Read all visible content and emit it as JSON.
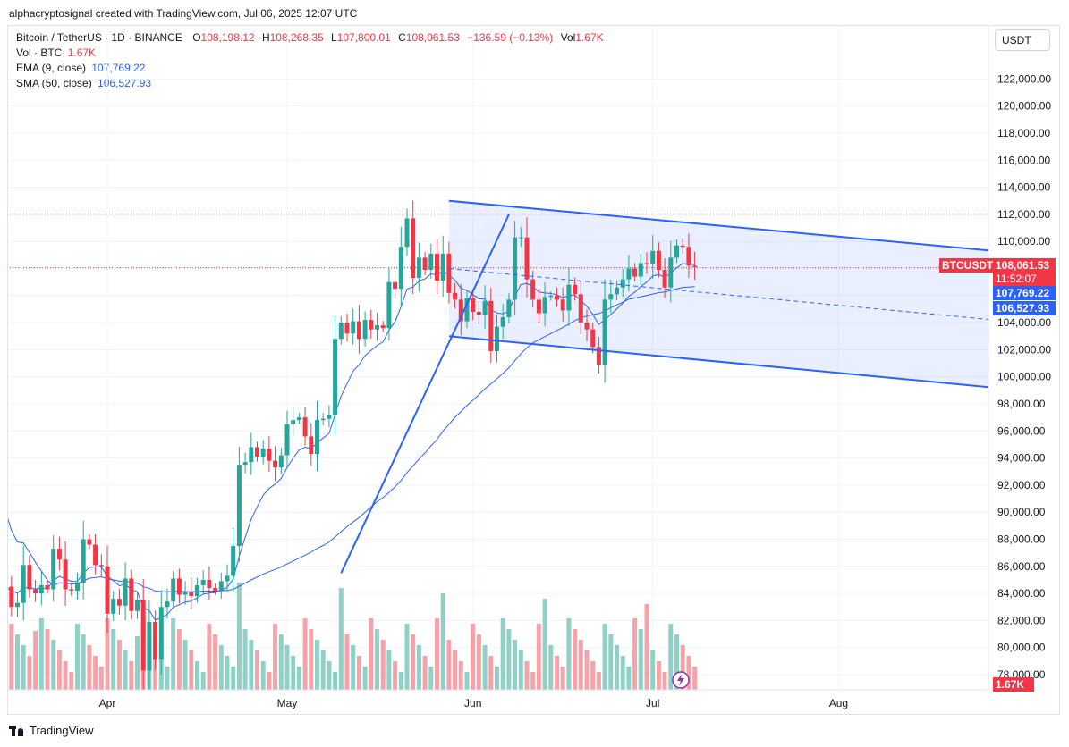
{
  "header": {
    "attribution": "alphacryptosignal created with TradingView.com, Jul 06, 2025 12:07 UTC"
  },
  "legend": {
    "symbol": "Bitcoin / TetherUS · 1D · BINANCE",
    "open_key": "O",
    "open": "108,198.12",
    "high_key": "H",
    "high": "108,268.35",
    "low_key": "L",
    "low": "107,800.01",
    "close_key": "C",
    "close": "108,061.53",
    "change": "−136.59 (−0.13%)",
    "vol_key": "Vol",
    "vol": "1.67K",
    "vol_btc_label": "Vol · BTC",
    "vol_btc": "1.67K",
    "ema_label": "EMA (9, close)",
    "ema": "107,769.22",
    "sma_label": "SMA (50, close)",
    "sma": "106,527.93"
  },
  "currency_button": "USDT",
  "price_tags": {
    "symbol": "BTCUSDT",
    "last_price": "108,061.53",
    "countdown": "11:52:07",
    "ema": "107,769.22",
    "sma": "106,527.93",
    "volume": "1.67K"
  },
  "footer": {
    "brand": "TradingView"
  },
  "colors": {
    "up": "#26a69a",
    "down": "#f23645",
    "channel": "#2962ff",
    "vol_up": "#8fd1c6",
    "vol_down": "#f5a3a8"
  },
  "chart_data": {
    "type": "candlestick",
    "title": "Bitcoin / TetherUS · 1D · BINANCE",
    "y_tick_labels": [
      "78,000.00",
      "80,000.00",
      "82,000.00",
      "84,000.00",
      "86,000.00",
      "88,000.00",
      "90,000.00",
      "92,000.00",
      "94,000.00",
      "96,000.00",
      "98,000.00",
      "100,000.00",
      "102,000.00",
      "104,000.00",
      "106,000.00",
      "108,000.00",
      "110,000.00",
      "112,000.00",
      "114,000.00",
      "116,000.00",
      "118,000.00",
      "120,000.00",
      "122,000.00"
    ],
    "ylim": [
      77000,
      125000
    ],
    "x_tick_labels": [
      {
        "label": "Apr",
        "day": 0
      },
      {
        "label": "May",
        "day": 30
      },
      {
        "label": "Jun",
        "day": 61
      },
      {
        "label": "Jul",
        "day": 91
      },
      {
        "label": "Aug",
        "day": 122
      }
    ],
    "first_day": -17,
    "last_day": 126,
    "closes": [
      84500,
      83000,
      83300,
      86100,
      84300,
      84000,
      84600,
      84300,
      87300,
      86500,
      84300,
      84200,
      84800,
      88000,
      87600,
      86100,
      86000,
      82500,
      83600,
      83100,
      85100,
      82700,
      83500,
      78300,
      81900,
      79100,
      83000,
      83400,
      85100,
      83900,
      84100,
      83800,
      84600,
      85000,
      84400,
      84200,
      84900,
      85300,
      87500,
      93500,
      93700,
      94800,
      94100,
      94700,
      93800,
      93300,
      94200,
      96500,
      96800,
      97000,
      95600,
      94300,
      96800,
      96900,
      97200,
      102800,
      104000,
      103200,
      104100,
      102800,
      104200,
      103500,
      103800,
      103600,
      107000,
      106500,
      109600,
      111700,
      107300,
      108800,
      107900,
      109100,
      107100,
      109100,
      106200,
      105700,
      104100,
      105800,
      104800,
      104600,
      105600,
      101900,
      103700,
      104400,
      105700,
      110300,
      110300,
      107200,
      105700,
      104700,
      105900,
      106000,
      105700,
      104900,
      106800,
      106100,
      104000,
      103500,
      102200,
      100900,
      105700,
      106100,
      106600,
      107200,
      108000,
      107400,
      108400,
      108300,
      109300,
      107900,
      106600,
      108800,
      109700,
      109600,
      108200,
      108100
    ],
    "ema_9": {
      "last": 107769.22
    },
    "sma_50": {
      "last": 106527.93
    },
    "channel": {
      "upper": {
        "from": {
          "day": 57,
          "price": 113000
        },
        "to": {
          "day": 148,
          "price": 109300
        }
      },
      "lower": {
        "from": {
          "day": 57,
          "price": 103000
        },
        "to": {
          "day": 148,
          "price": 99200
        }
      },
      "mid": {
        "from": {
          "day": 57,
          "price": 108000
        },
        "to": {
          "day": 148,
          "price": 104200
        }
      }
    },
    "trendline": {
      "from": {
        "day": 39,
        "price": 85500
      },
      "to": {
        "day": 67,
        "price": 112000
      }
    },
    "horizontal_lines": [
      112000,
      108061.53
    ]
  }
}
